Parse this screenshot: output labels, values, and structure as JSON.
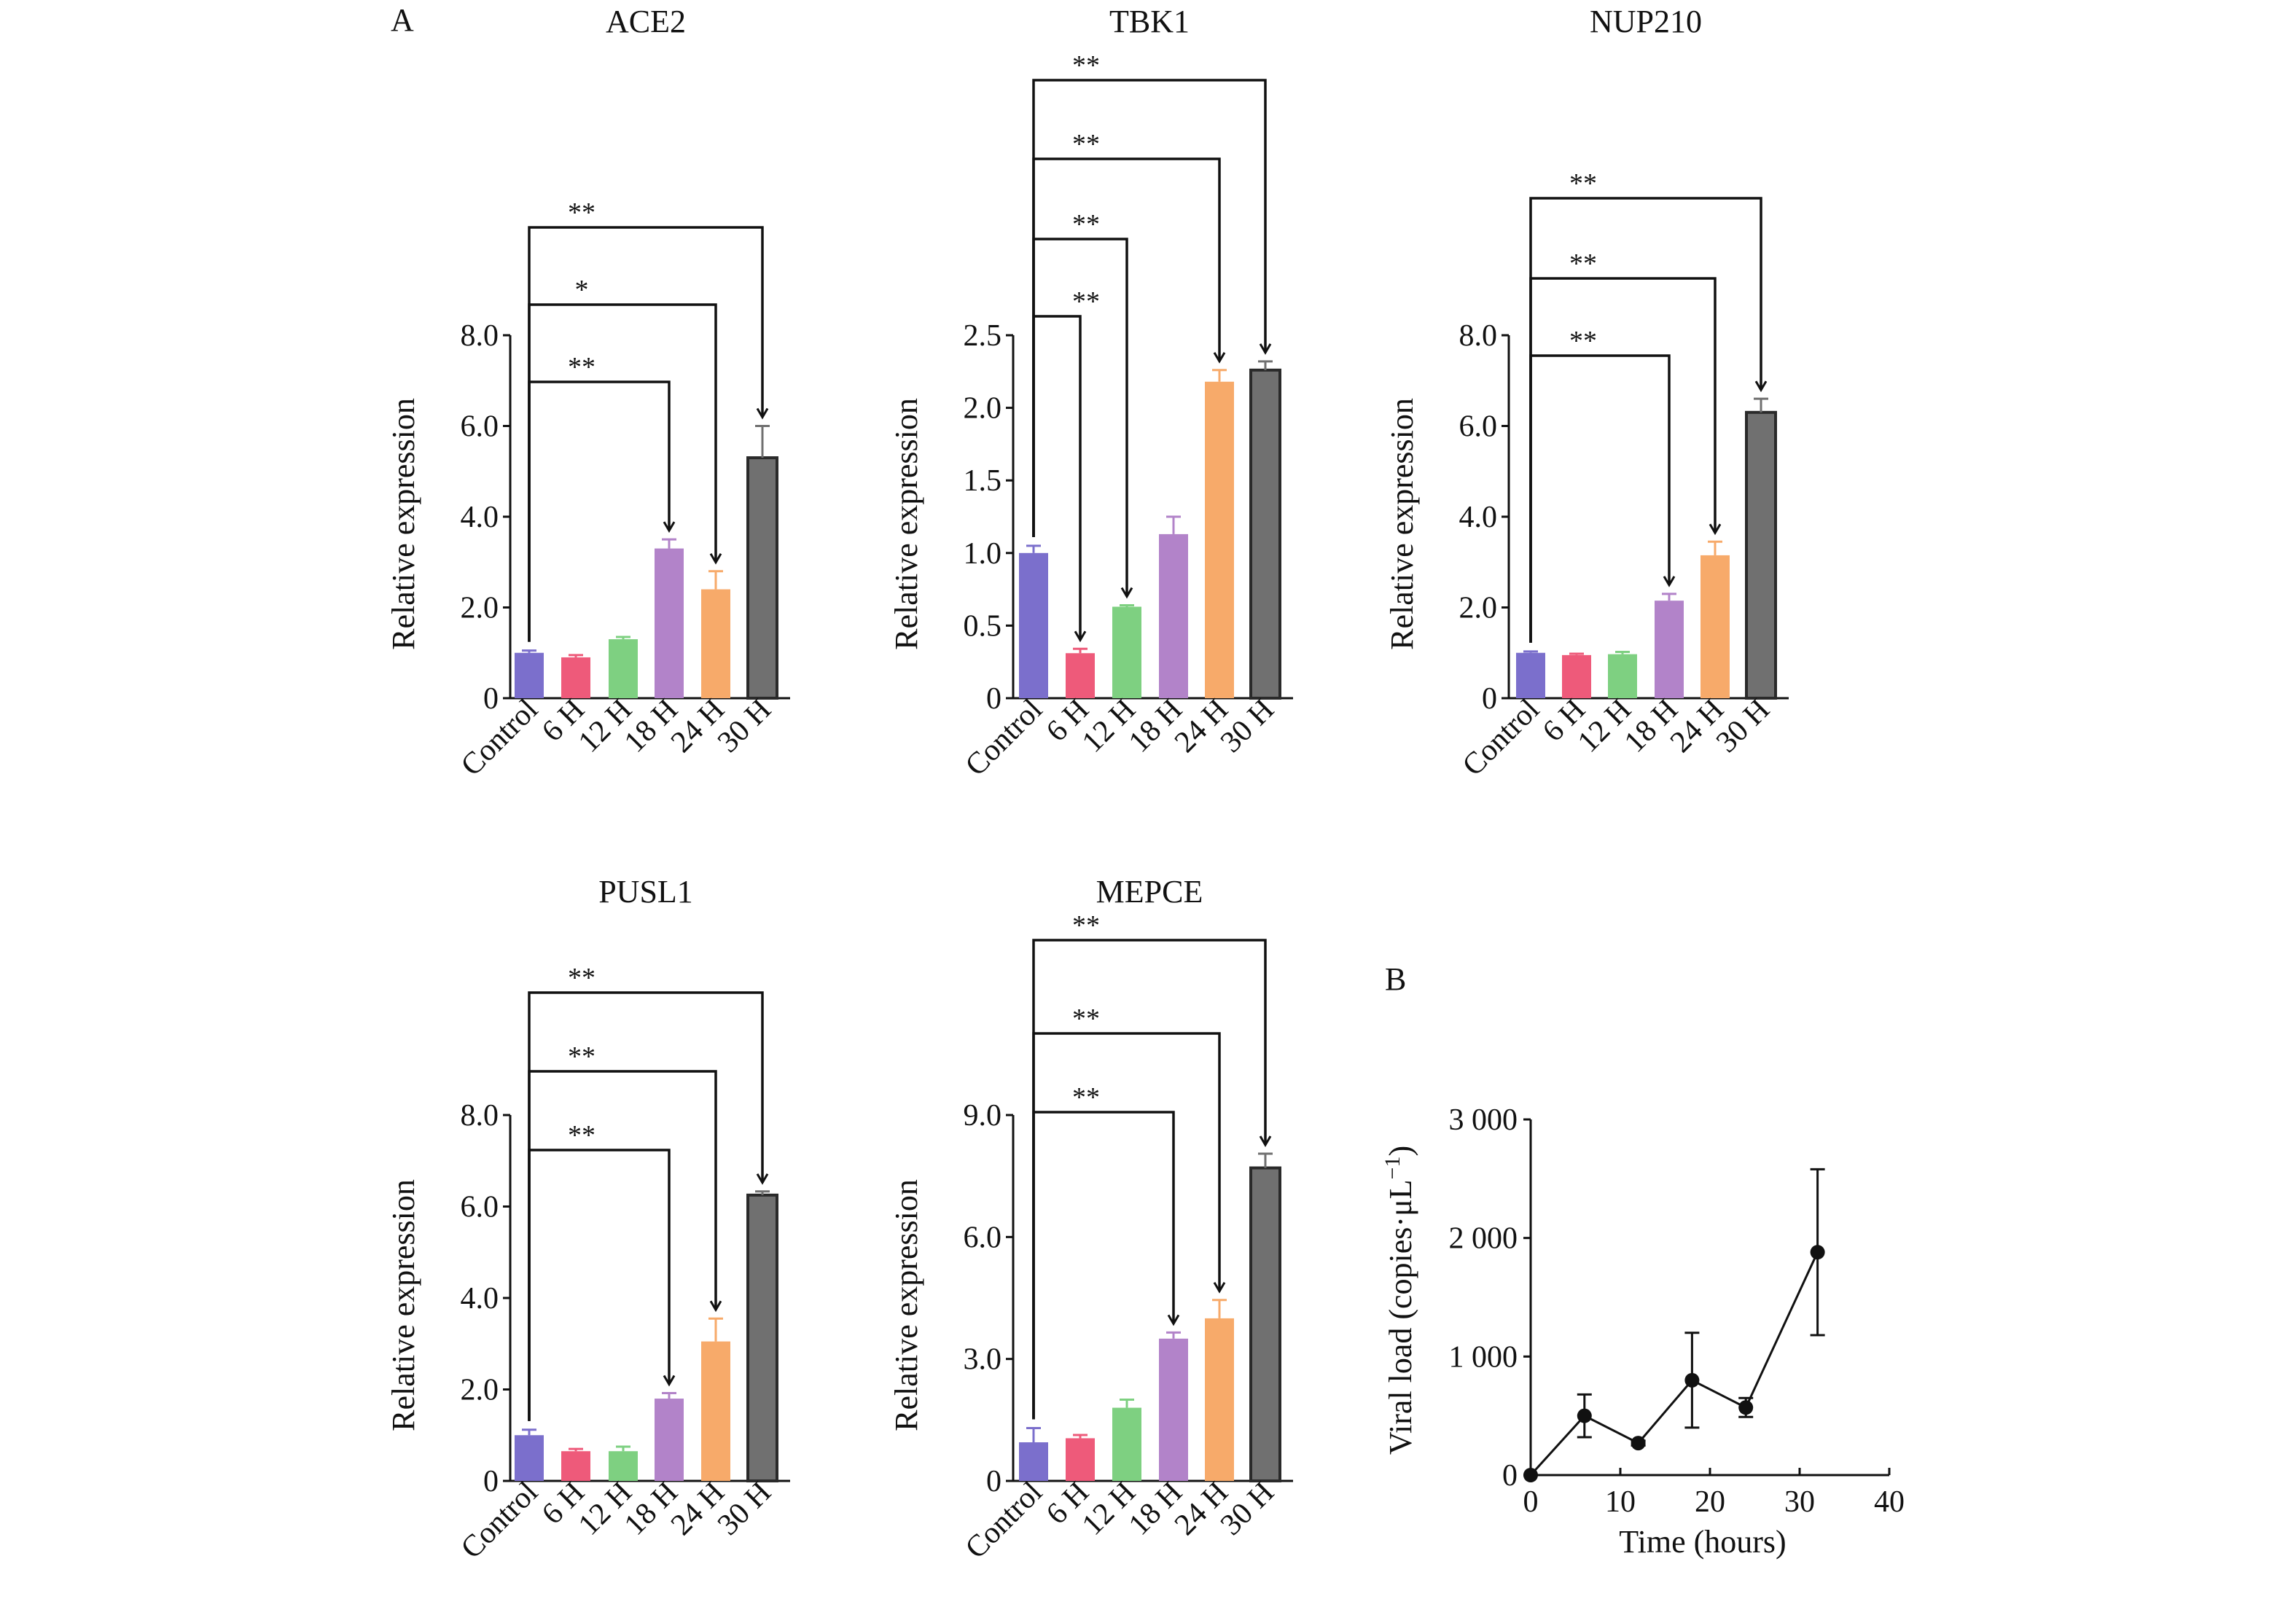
{
  "panel_labels": {
    "a": "A",
    "b": "B"
  },
  "chart_data": [
    {
      "panel": "A",
      "type": "bar",
      "title": "ACE2",
      "ylabel": "Relative expression",
      "ylim": [
        0,
        8
      ],
      "yticks": [
        "0",
        "2.0",
        "4.0",
        "6.0",
        "8.0"
      ],
      "ytick_values": [
        0,
        2,
        4,
        6,
        8
      ],
      "categories": [
        "Control",
        "6 H",
        "12 H",
        "18 H",
        "24 H",
        "30 H"
      ],
      "values": [
        1.0,
        0.9,
        1.3,
        3.3,
        2.4,
        5.3
      ],
      "errors": [
        0.05,
        0.05,
        0.05,
        0.2,
        0.4,
        0.7
      ],
      "colors": [
        "#7b6fcc",
        "#ee5a7a",
        "#7ed081",
        "#b283c9",
        "#f7aa6a",
        "#707070"
      ],
      "significance": [
        {
          "from": "Control",
          "to": "18 H",
          "label": "**"
        },
        {
          "from": "Control",
          "to": "24 H",
          "label": "*"
        },
        {
          "from": "Control",
          "to": "30 H",
          "label": "**"
        }
      ]
    },
    {
      "panel": "A",
      "type": "bar",
      "title": "TBK1",
      "ylabel": "Relative expression",
      "ylim": [
        0,
        2.5
      ],
      "yticks": [
        "0",
        "0.5",
        "1.0",
        "1.5",
        "2.0",
        "2.5"
      ],
      "ytick_values": [
        0,
        0.5,
        1.0,
        1.5,
        2.0,
        2.5
      ],
      "categories": [
        "Control",
        "6 H",
        "12 H",
        "18 H",
        "24 H",
        "30 H"
      ],
      "values": [
        1.0,
        0.31,
        0.63,
        1.13,
        2.18,
        2.26
      ],
      "errors": [
        0.05,
        0.03,
        0.01,
        0.12,
        0.08,
        0.06
      ],
      "colors": [
        "#7b6fcc",
        "#ee5a7a",
        "#7ed081",
        "#b283c9",
        "#f7aa6a",
        "#707070"
      ],
      "significance": [
        {
          "from": "Control",
          "to": "6 H",
          "label": "**"
        },
        {
          "from": "Control",
          "to": "12 H",
          "label": "**"
        },
        {
          "from": "Control",
          "to": "24 H",
          "label": "**"
        },
        {
          "from": "Control",
          "to": "30 H",
          "label": "**"
        }
      ]
    },
    {
      "panel": "A",
      "type": "bar",
      "title": "NUP210",
      "ylabel": "Relative expression",
      "ylim": [
        0,
        8
      ],
      "yticks": [
        "0",
        "2.0",
        "4.0",
        "6.0",
        "8.0"
      ],
      "ytick_values": [
        0,
        2,
        4,
        6,
        8
      ],
      "categories": [
        "Control",
        "6 H",
        "12 H",
        "18 H",
        "24 H",
        "30 H"
      ],
      "values": [
        1.0,
        0.95,
        0.97,
        2.15,
        3.15,
        6.3
      ],
      "errors": [
        0.03,
        0.03,
        0.05,
        0.15,
        0.3,
        0.3
      ],
      "colors": [
        "#7b6fcc",
        "#ee5a7a",
        "#7ed081",
        "#b283c9",
        "#f7aa6a",
        "#707070"
      ],
      "significance": [
        {
          "from": "Control",
          "to": "18 H",
          "label": "**"
        },
        {
          "from": "Control",
          "to": "24 H",
          "label": "**"
        },
        {
          "from": "Control",
          "to": "30 H",
          "label": "**"
        }
      ]
    },
    {
      "panel": "A",
      "type": "bar",
      "title": "PUSL1",
      "ylabel": "Relative expression",
      "ylim": [
        0,
        8
      ],
      "yticks": [
        "0",
        "2.0",
        "4.0",
        "6.0",
        "8.0"
      ],
      "ytick_values": [
        0,
        2,
        4,
        6,
        8
      ],
      "categories": [
        "Control",
        "6 H",
        "12 H",
        "18 H",
        "24 H",
        "30 H"
      ],
      "values": [
        1.0,
        0.65,
        0.65,
        1.8,
        3.05,
        6.25
      ],
      "errors": [
        0.12,
        0.05,
        0.1,
        0.12,
        0.5,
        0.08
      ],
      "colors": [
        "#7b6fcc",
        "#ee5a7a",
        "#7ed081",
        "#b283c9",
        "#f7aa6a",
        "#707070"
      ],
      "significance": [
        {
          "from": "Control",
          "to": "18 H",
          "label": "**"
        },
        {
          "from": "Control",
          "to": "24 H",
          "label": "**"
        },
        {
          "from": "Control",
          "to": "30 H",
          "label": "**"
        }
      ]
    },
    {
      "panel": "A",
      "type": "bar",
      "title": "MEPCE",
      "ylabel": "Relative expression",
      "ylim": [
        0,
        9
      ],
      "yticks": [
        "0",
        "3.0",
        "6.0",
        "9.0"
      ],
      "ytick_values": [
        0,
        3,
        6,
        9
      ],
      "categories": [
        "Control",
        "6 H",
        "12 H",
        "18 H",
        "24 H",
        "30 H"
      ],
      "values": [
        0.95,
        1.05,
        1.8,
        3.5,
        4.0,
        7.7
      ],
      "errors": [
        0.35,
        0.08,
        0.2,
        0.15,
        0.45,
        0.35
      ],
      "colors": [
        "#7b6fcc",
        "#ee5a7a",
        "#7ed081",
        "#b283c9",
        "#f7aa6a",
        "#707070"
      ],
      "significance": [
        {
          "from": "Control",
          "to": "18 H",
          "label": "**"
        },
        {
          "from": "Control",
          "to": "24 H",
          "label": "**"
        },
        {
          "from": "Control",
          "to": "30 H",
          "label": "**"
        }
      ]
    },
    {
      "panel": "B",
      "type": "line",
      "xlabel": "Time (hours)",
      "ylabel": "Viral load (copies·μL",
      "ylabel_sup": "−1",
      "ylabel_suffix": ")",
      "xlim": [
        0,
        40
      ],
      "ylim": [
        0,
        3000
      ],
      "xticks": [
        "0",
        "10",
        "20",
        "30",
        "40"
      ],
      "xtick_values": [
        0,
        10,
        20,
        30,
        40
      ],
      "yticks": [
        "0",
        "1 000",
        "2 000",
        "3 000"
      ],
      "ytick_values": [
        0,
        1000,
        2000,
        3000
      ],
      "x": [
        0,
        6,
        12,
        18,
        24,
        32
      ],
      "y": [
        0,
        500,
        270,
        800,
        570,
        1880
      ],
      "errors": [
        0,
        180,
        20,
        400,
        80,
        700
      ]
    }
  ]
}
